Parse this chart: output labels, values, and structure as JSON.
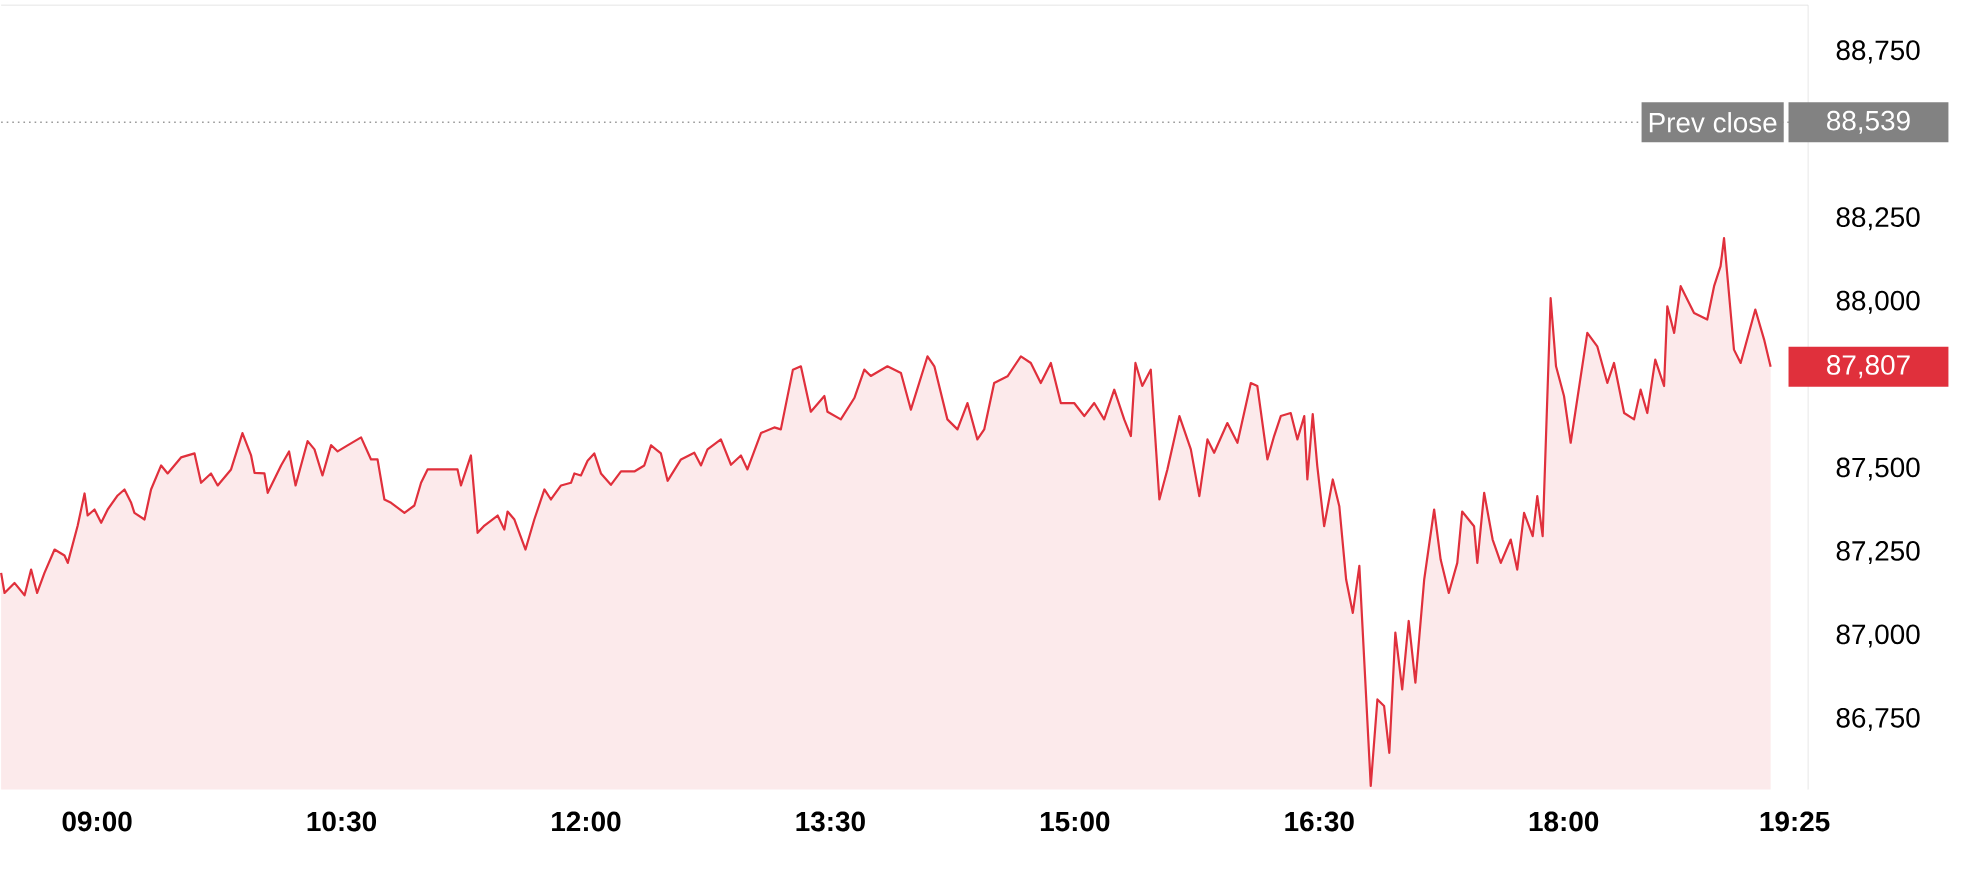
{
  "chart_data": {
    "type": "area",
    "xlim": [
      8.411,
      19.5
    ],
    "ylim": [
      86540,
      88890
    ],
    "xticks": [
      {
        "value": 9,
        "label": "09:00"
      },
      {
        "value": 10.5,
        "label": "10:30"
      },
      {
        "value": 12,
        "label": "12:00"
      },
      {
        "value": 13.5,
        "label": "13:30"
      },
      {
        "value": 15,
        "label": "15:00"
      },
      {
        "value": 16.5,
        "label": "16:30"
      },
      {
        "value": 18,
        "label": "18:00"
      },
      {
        "value": 19.417,
        "label": "19:25"
      }
    ],
    "yticks": [
      {
        "value": 86750,
        "label": "86,750"
      },
      {
        "value": 87000,
        "label": "87,000"
      },
      {
        "value": 87250,
        "label": "87,250"
      },
      {
        "value": 87500,
        "label": "87,500"
      },
      {
        "value": 88000,
        "label": "88,000"
      },
      {
        "value": 88250,
        "label": "88,250"
      },
      {
        "value": 88750,
        "label": "88,750"
      }
    ],
    "ref_lines": [
      {
        "axis": "y",
        "value": 88539,
        "label": "Prev close",
        "color": "#999999",
        "line_style": "dotted"
      }
    ],
    "annotations": [
      "88,539",
      "87,807"
    ],
    "series": [
      {
        "color": "#e0303c",
        "x": [
          8.411,
          8.432,
          8.493,
          8.555,
          8.595,
          8.632,
          8.677,
          8.739,
          8.8,
          8.82,
          8.881,
          8.923,
          8.942,
          8.984,
          9.025,
          9.065,
          9.126,
          9.168,
          9.209,
          9.229,
          9.291,
          9.331,
          9.393,
          9.433,
          9.515,
          9.598,
          9.638,
          9.699,
          9.74,
          9.822,
          9.892,
          9.945,
          9.966,
          10.027,
          10.047,
          10.129,
          10.178,
          10.218,
          10.292,
          10.334,
          10.383,
          10.436,
          10.476,
          10.537,
          10.62,
          10.681,
          10.721,
          10.763,
          10.804,
          10.886,
          10.947,
          10.988,
          11.028,
          11.11,
          11.212,
          11.233,
          11.294,
          11.335,
          11.377,
          11.458,
          11.499,
          11.519,
          11.561,
          11.629,
          11.683,
          11.745,
          11.785,
          11.847,
          11.908,
          11.929,
          11.969,
          12.01,
          12.051,
          12.092,
          12.153,
          12.215,
          12.297,
          12.358,
          12.399,
          12.46,
          12.501,
          12.583,
          12.665,
          12.706,
          12.746,
          12.828,
          12.89,
          12.951,
          12.991,
          13.074,
          13.156,
          13.196,
          13.27,
          13.319,
          13.38,
          13.463,
          13.482,
          13.564,
          13.647,
          13.708,
          13.748,
          13.85,
          13.933,
          13.994,
          14.096,
          14.138,
          14.218,
          14.28,
          14.341,
          14.402,
          14.444,
          14.505,
          14.587,
          14.669,
          14.73,
          14.791,
          14.853,
          14.914,
          14.996,
          15.058,
          15.119,
          15.18,
          15.242,
          15.303,
          15.344,
          15.372,
          15.414,
          15.466,
          15.519,
          15.568,
          15.642,
          15.712,
          15.764,
          15.814,
          15.855,
          15.936,
          15.998,
          16.08,
          16.12,
          16.182,
          16.223,
          16.264,
          16.325,
          16.366,
          16.408,
          16.427,
          16.46,
          16.488,
          16.53,
          16.583,
          16.623,
          16.665,
          16.706,
          16.746,
          16.816,
          16.857,
          16.898,
          16.93,
          16.967,
          17.009,
          17.049,
          17.09,
          17.144,
          17.205,
          17.245,
          17.295,
          17.347,
          17.377,
          17.45,
          17.47,
          17.512,
          17.564,
          17.614,
          17.675,
          17.715,
          17.757,
          17.81,
          17.838,
          17.871,
          17.92,
          17.953,
          18.002,
          18.043,
          18.145,
          18.206,
          18.268,
          18.309,
          18.371,
          18.432,
          18.472,
          18.513,
          18.562,
          18.616,
          18.636,
          18.678,
          18.718,
          18.8,
          18.881,
          18.923,
          18.963,
          18.984,
          19.045,
          19.086,
          19.176,
          19.23,
          19.27
        ],
        "values": [
          87189,
          87129,
          87159,
          87122,
          87199,
          87129,
          87189,
          87259,
          87241,
          87219,
          87331,
          87427,
          87361,
          87379,
          87339,
          87379,
          87421,
          87439,
          87399,
          87369,
          87349,
          87439,
          87511,
          87487,
          87535,
          87547,
          87459,
          87487,
          87451,
          87499,
          87608,
          87541,
          87489,
          87487,
          87429,
          87511,
          87553,
          87451,
          87584,
          87559,
          87481,
          87572,
          87553,
          87571,
          87595,
          87529,
          87529,
          87409,
          87399,
          87369,
          87391,
          87459,
          87499,
          87499,
          87499,
          87451,
          87541,
          87309,
          87331,
          87361,
          87319,
          87373,
          87349,
          87259,
          87349,
          87439,
          87409,
          87451,
          87459,
          87487,
          87481,
          87525,
          87547,
          87487,
          87453,
          87493,
          87493,
          87511,
          87571,
          87547,
          87465,
          87529,
          87549,
          87511,
          87559,
          87589,
          87513,
          87541,
          87499,
          87608,
          87625,
          87619,
          87798,
          87808,
          87672,
          87719,
          87672,
          87649,
          87713,
          87798,
          87779,
          87808,
          87788,
          87678,
          87838,
          87808,
          87649,
          87619,
          87698,
          87589,
          87619,
          87758,
          87778,
          87838,
          87818,
          87758,
          87818,
          87698,
          87698,
          87659,
          87698,
          87649,
          87738,
          87649,
          87599,
          87818,
          87749,
          87798,
          87409,
          87499,
          87659,
          87559,
          87419,
          87589,
          87549,
          87638,
          87579,
          87758,
          87749,
          87529,
          87599,
          87659,
          87668,
          87589,
          87659,
          87469,
          87665,
          87509,
          87329,
          87469,
          87389,
          87169,
          87069,
          87210,
          86551,
          86810,
          86790,
          86650,
          87010,
          86840,
          87045,
          86860,
          87169,
          87379,
          87229,
          87129,
          87219,
          87373,
          87329,
          87219,
          87429,
          87289,
          87219,
          87289,
          87199,
          87369,
          87299,
          87419,
          87299,
          88012,
          87808,
          87719,
          87579,
          87908,
          87868,
          87758,
          87818,
          87668,
          87649,
          87738,
          87668,
          87828,
          87749,
          87988,
          87908,
          88048,
          87968,
          87948,
          88048,
          88108,
          88192,
          87858,
          87818,
          87978,
          87888,
          87807
        ]
      }
    ]
  }
}
